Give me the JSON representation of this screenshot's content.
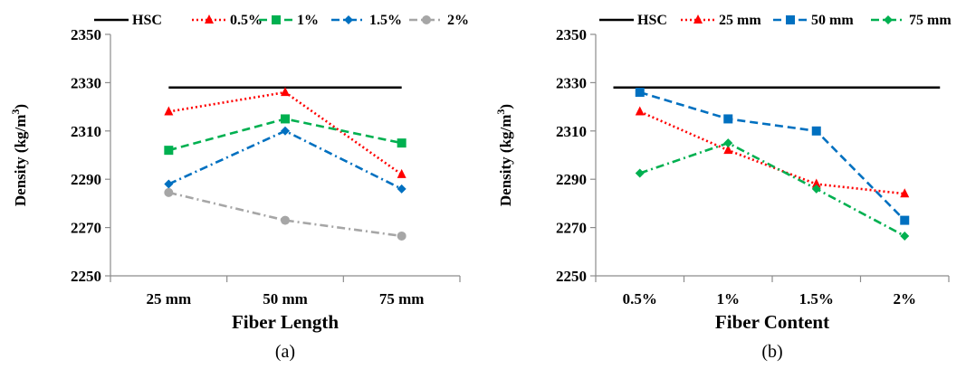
{
  "chart_data": [
    {
      "type": "line",
      "panel_label": "(a)",
      "xlabel": "Fiber Length",
      "ylabel": "Density (kg/m³)",
      "ylabel_parts": {
        "main": "Density (kg/m",
        "sup": "3",
        "close": ")"
      },
      "categories": [
        "25 mm",
        "50 mm",
        "75 mm"
      ],
      "yticks": [
        "2350",
        "2330",
        "2310",
        "2290",
        "2270",
        "2250"
      ],
      "ylim": [
        2250,
        2350
      ],
      "legend_position": "top",
      "series": [
        {
          "name": "HSC",
          "values": [
            2328,
            2328,
            2328
          ],
          "color": "#000000",
          "dash": "",
          "marker": "none",
          "full_span": true
        },
        {
          "name": "0.5%",
          "values": [
            2318,
            2326,
            2292
          ],
          "color": "#ff0000",
          "dash": "2,3",
          "marker": "triangle"
        },
        {
          "name": "1%",
          "values": [
            2302,
            2315,
            2305
          ],
          "color": "#00b050",
          "dash": "9,5",
          "marker": "square"
        },
        {
          "name": "1.5%",
          "values": [
            2288,
            2310,
            2286
          ],
          "color": "#0070c0",
          "dash": "9,4,2,4",
          "marker": "diamond"
        },
        {
          "name": "2%",
          "values": [
            2284.5,
            2273,
            2266.5
          ],
          "color": "#a6a6a6",
          "dash": "9,4,2,4",
          "marker": "circle"
        }
      ]
    },
    {
      "type": "line",
      "panel_label": "(b)",
      "xlabel": "Fiber Content",
      "ylabel": "Density (kg/m³)",
      "ylabel_parts": {
        "main": "Density (kg/m",
        "sup": "3",
        "close": ")"
      },
      "categories": [
        "0.5%",
        "1%",
        "1.5%",
        "2%"
      ],
      "yticks": [
        "2350",
        "2330",
        "2310",
        "2290",
        "2270",
        "2250"
      ],
      "ylim": [
        2250,
        2350
      ],
      "legend_position": "top",
      "series": [
        {
          "name": "HSC",
          "values": [
            2328,
            2328,
            2328,
            2328
          ],
          "color": "#000000",
          "dash": "",
          "marker": "none",
          "full_span": true
        },
        {
          "name": "25 mm",
          "values": [
            2318,
            2302,
            2288,
            2284
          ],
          "color": "#ff0000",
          "dash": "2,3",
          "marker": "triangle"
        },
        {
          "name": "50 mm",
          "values": [
            2326,
            2315,
            2310,
            2273
          ],
          "color": "#0070c0",
          "dash": "9,5",
          "marker": "square"
        },
        {
          "name": "75 mm",
          "values": [
            2292.5,
            2305,
            2286,
            2266.5
          ],
          "color": "#00b050",
          "dash": "9,4,2,4",
          "marker": "diamond"
        }
      ]
    }
  ]
}
